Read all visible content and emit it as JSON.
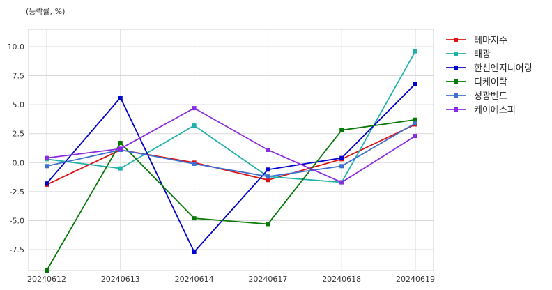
{
  "chart_data": {
    "type": "line",
    "title": "",
    "unit_label": "(등락률, %)",
    "xlabel": "",
    "ylabel": "",
    "categories": [
      "20240612",
      "20240613",
      "20240614",
      "20240617",
      "20240618",
      "20240619"
    ],
    "ylim": [
      -9.3,
      11.5
    ],
    "yticks": [
      -7.5,
      -5.0,
      -2.5,
      0.0,
      2.5,
      5.0,
      7.5,
      10.0
    ],
    "ytick_labels": [
      "-7.5",
      "-5.0",
      "-2.5",
      "0.0",
      "2.5",
      "5.0",
      "7.5",
      "10.0"
    ],
    "grid": true,
    "legend_position": "right",
    "series": [
      {
        "name": "테마지수",
        "color": "#dd1111",
        "values": [
          -1.9,
          1.1,
          0.0,
          -1.5,
          0.3,
          3.3
        ]
      },
      {
        "name": "태광",
        "color": "#20b2aa",
        "values": [
          0.3,
          -0.5,
          3.2,
          -1.2,
          -1.7,
          9.6
        ]
      },
      {
        "name": "한선엔지니어링",
        "color": "#0000cc",
        "values": [
          -1.8,
          5.6,
          -7.7,
          -0.6,
          0.4,
          6.8
        ]
      },
      {
        "name": "디케이락",
        "color": "#067806",
        "values": [
          -9.3,
          1.7,
          -4.8,
          -5.3,
          2.8,
          3.7
        ]
      },
      {
        "name": "성광벤드",
        "color": "#3d6fd0",
        "values": [
          -0.3,
          1.1,
          -0.1,
          -1.2,
          -0.3,
          3.4
        ]
      },
      {
        "name": "케이에스피",
        "color": "#8a2be2",
        "values": [
          0.4,
          1.2,
          4.7,
          1.1,
          -1.7,
          2.3
        ]
      }
    ]
  }
}
